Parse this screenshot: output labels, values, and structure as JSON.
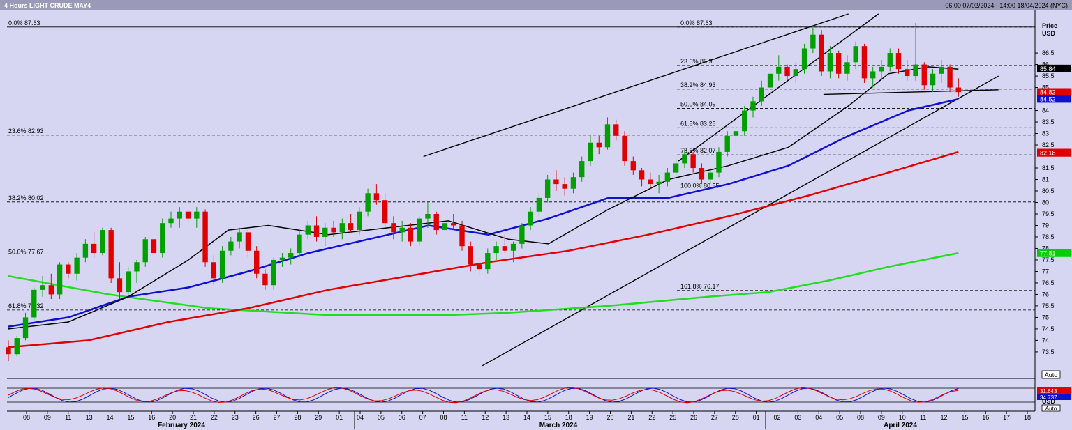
{
  "header": {
    "title": "4 Hours LIGHT CRUDE MAY4",
    "range": "06:00 07/02/2024 - 14:00 18/04/2024 (NYC)"
  },
  "axis": {
    "price_label": "Price",
    "currency": "USD",
    "auto_label": "Auto",
    "price_ticks": [
      "86.5",
      "86",
      "85.5",
      "85",
      "84",
      "83.5",
      "83",
      "82.5",
      "81.5",
      "81",
      "80.5",
      "80",
      "79.5",
      "79",
      "78.5",
      "78",
      "77.5",
      "77",
      "76.5",
      "76",
      "75.5",
      "75",
      "74.5",
      "74",
      "73.5"
    ],
    "date_ticks": [
      "08",
      "09",
      "11",
      "13",
      "14",
      "15",
      "16",
      "20",
      "21",
      "22",
      "23",
      "26",
      "27",
      "28",
      "29",
      "01",
      "04",
      "05",
      "06",
      "07",
      "08",
      "11",
      "12",
      "13",
      "14",
      "15",
      "18",
      "19",
      "20",
      "21",
      "22",
      "25",
      "26",
      "27",
      "28",
      "01",
      "02",
      "03",
      "04",
      "05",
      "08",
      "09",
      "10",
      "11",
      "12",
      "15",
      "16",
      "17",
      "18"
    ],
    "month_labels": [
      "February 2024",
      "March 2024",
      "April 2024"
    ],
    "price_badges": [
      {
        "label": "85.84",
        "color": "#000000"
      },
      {
        "label": "84.82",
        "color": "#e00000"
      },
      {
        "label": "84.52",
        "color": "#1010d0"
      },
      {
        "label": "82.18",
        "color": "#e00000"
      },
      {
        "label": "82.18",
        "color": "#e00000"
      },
      {
        "label": "82.18",
        "color": "#e00000"
      },
      {
        "label": "77.81",
        "color": "#00d000"
      }
    ]
  },
  "fib_left": [
    {
      "label": "0.0% 87.63",
      "price": 87.63
    },
    {
      "label": "23.6% 82.93",
      "price": 82.93
    },
    {
      "label": "38.2% 80.02",
      "price": 80.02
    },
    {
      "label": "50.0% 77.67",
      "price": 77.67
    },
    {
      "label": "61.8% 75.32",
      "price": 75.32
    }
  ],
  "fib_right": [
    {
      "label": "0.0% 87.63",
      "price": 87.63
    },
    {
      "label": "23.6% 85.96",
      "price": 85.96
    },
    {
      "label": "38.2% 84.93",
      "price": 84.93
    },
    {
      "label": "50.0% 84.09",
      "price": 84.09
    },
    {
      "label": "61.8% 83.25",
      "price": 83.25
    },
    {
      "label": "78.6% 82.07",
      "price": 82.07
    },
    {
      "label": "100.0% 80.55",
      "price": 80.55
    },
    {
      "label": "161.8% 76.17",
      "price": 76.17
    }
  ],
  "oscillator": {
    "badges": [
      {
        "label": "31.643",
        "color": "#e00000"
      },
      {
        "label": "34.737",
        "color": "#1010d0"
      }
    ],
    "unit": "USD",
    "auto_label": "Auto"
  },
  "chart_data": {
    "type": "candlestick",
    "ylim": [
      72.8,
      88.2
    ],
    "colors": {
      "up": "#00a000",
      "down": "#e00000",
      "ma_black": "#000000",
      "ma_blue": "#1010d0",
      "ma_red": "#e00000",
      "ma_green": "#22dd22"
    },
    "candles": [
      [
        73.7,
        74.0,
        73.1,
        73.4
      ],
      [
        73.4,
        74.2,
        73.3,
        74.1
      ],
      [
        74.1,
        75.2,
        74.0,
        75.0
      ],
      [
        75.0,
        76.3,
        74.9,
        76.2
      ],
      [
        76.2,
        76.8,
        75.9,
        76.4
      ],
      [
        76.4,
        76.9,
        75.8,
        76.0
      ],
      [
        76.0,
        77.4,
        75.8,
        77.3
      ],
      [
        77.3,
        77.4,
        76.7,
        76.9
      ],
      [
        76.9,
        77.8,
        76.6,
        77.6
      ],
      [
        77.6,
        78.4,
        77.4,
        78.2
      ],
      [
        78.2,
        78.7,
        77.6,
        77.8
      ],
      [
        77.8,
        78.9,
        77.7,
        78.8
      ],
      [
        78.8,
        78.9,
        76.5,
        76.7
      ],
      [
        76.7,
        77.4,
        75.8,
        76.1
      ],
      [
        76.1,
        77.2,
        75.9,
        77.0
      ],
      [
        77.0,
        77.5,
        76.5,
        77.4
      ],
      [
        77.4,
        78.5,
        77.2,
        78.4
      ],
      [
        78.4,
        78.8,
        77.6,
        77.8
      ],
      [
        77.8,
        79.3,
        77.6,
        79.1
      ],
      [
        79.1,
        79.6,
        78.9,
        79.3
      ],
      [
        79.3,
        79.8,
        78.9,
        79.6
      ],
      [
        79.6,
        79.7,
        79.1,
        79.3
      ],
      [
        79.3,
        79.8,
        78.9,
        79.6
      ],
      [
        79.6,
        79.7,
        77.2,
        77.4
      ],
      [
        77.4,
        77.7,
        76.4,
        76.7
      ],
      [
        76.7,
        78.1,
        76.5,
        77.9
      ],
      [
        77.9,
        78.5,
        77.7,
        78.3
      ],
      [
        78.3,
        78.9,
        78.0,
        78.7
      ],
      [
        78.7,
        78.8,
        77.6,
        77.9
      ],
      [
        77.9,
        78.1,
        76.7,
        76.9
      ],
      [
        76.9,
        77.1,
        76.2,
        76.4
      ],
      [
        76.4,
        77.6,
        76.2,
        77.5
      ],
      [
        77.5,
        77.8,
        77.2,
        77.6
      ],
      [
        77.6,
        78.0,
        77.3,
        77.8
      ],
      [
        77.8,
        78.8,
        77.6,
        78.6
      ],
      [
        78.6,
        79.2,
        78.4,
        79.0
      ],
      [
        79.0,
        79.4,
        78.3,
        78.5
      ],
      [
        78.5,
        79.1,
        78.1,
        78.9
      ],
      [
        78.9,
        79.2,
        78.5,
        78.7
      ],
      [
        78.7,
        79.3,
        78.4,
        79.1
      ],
      [
        79.1,
        79.5,
        78.7,
        78.8
      ],
      [
        78.8,
        79.8,
        78.6,
        79.6
      ],
      [
        79.6,
        80.6,
        79.4,
        80.4
      ],
      [
        80.4,
        80.8,
        79.9,
        80.1
      ],
      [
        80.1,
        80.4,
        78.9,
        79.1
      ],
      [
        79.1,
        79.4,
        78.4,
        78.7
      ],
      [
        78.7,
        79.2,
        78.3,
        78.9
      ],
      [
        78.9,
        79.1,
        78.1,
        78.3
      ],
      [
        78.3,
        79.4,
        78.1,
        79.3
      ],
      [
        79.3,
        80.0,
        78.9,
        79.5
      ],
      [
        79.5,
        79.6,
        78.6,
        78.8
      ],
      [
        78.8,
        79.3,
        78.5,
        79.1
      ],
      [
        79.1,
        79.5,
        78.8,
        79.0
      ],
      [
        79.0,
        79.2,
        77.9,
        78.1
      ],
      [
        78.1,
        78.3,
        77.0,
        77.3
      ],
      [
        77.3,
        77.6,
        76.8,
        77.1
      ],
      [
        77.1,
        78.0,
        76.9,
        77.8
      ],
      [
        77.8,
        78.3,
        77.5,
        78.1
      ],
      [
        78.1,
        78.6,
        77.8,
        77.9
      ],
      [
        77.9,
        78.3,
        77.4,
        78.2
      ],
      [
        78.2,
        79.1,
        78.0,
        79.0
      ],
      [
        79.0,
        79.8,
        78.8,
        79.6
      ],
      [
        79.6,
        80.4,
        79.4,
        80.2
      ],
      [
        80.2,
        81.2,
        80.0,
        81.0
      ],
      [
        81.0,
        81.4,
        80.5,
        80.8
      ],
      [
        80.8,
        81.1,
        80.3,
        80.6
      ],
      [
        80.6,
        81.3,
        80.4,
        81.1
      ],
      [
        81.1,
        82.0,
        80.9,
        81.8
      ],
      [
        81.8,
        82.9,
        81.6,
        82.6
      ],
      [
        82.6,
        82.9,
        82.1,
        82.4
      ],
      [
        82.4,
        83.7,
        82.3,
        83.4
      ],
      [
        83.4,
        83.6,
        82.7,
        82.9
      ],
      [
        82.9,
        83.1,
        81.6,
        81.8
      ],
      [
        81.8,
        82.0,
        81.2,
        81.4
      ],
      [
        81.4,
        81.5,
        80.7,
        81.0
      ],
      [
        81.0,
        81.3,
        80.6,
        80.8
      ],
      [
        80.8,
        81.2,
        80.4,
        80.9
      ],
      [
        80.9,
        81.5,
        80.7,
        81.3
      ],
      [
        81.3,
        81.9,
        81.1,
        81.7
      ],
      [
        81.7,
        82.3,
        81.5,
        82.1
      ],
      [
        82.1,
        82.2,
        81.3,
        81.5
      ],
      [
        81.5,
        81.7,
        80.8,
        81.0
      ],
      [
        81.0,
        81.5,
        80.8,
        81.3
      ],
      [
        81.3,
        82.4,
        81.1,
        82.2
      ],
      [
        82.2,
        83.1,
        82.0,
        82.9
      ],
      [
        82.9,
        83.6,
        82.6,
        83.1
      ],
      [
        83.1,
        84.2,
        82.9,
        84.0
      ],
      [
        84.0,
        84.6,
        83.7,
        84.4
      ],
      [
        84.4,
        85.3,
        84.2,
        85.0
      ],
      [
        85.0,
        85.9,
        84.7,
        85.6
      ],
      [
        85.6,
        86.4,
        85.3,
        85.9
      ],
      [
        85.9,
        86.0,
        85.3,
        85.5
      ],
      [
        85.5,
        86.1,
        85.2,
        85.8
      ],
      [
        85.8,
        86.9,
        85.6,
        86.7
      ],
      [
        86.7,
        87.6,
        86.5,
        87.3
      ],
      [
        87.3,
        87.5,
        85.5,
        85.7
      ],
      [
        85.7,
        86.8,
        85.4,
        86.5
      ],
      [
        86.5,
        86.6,
        85.4,
        85.6
      ],
      [
        85.6,
        86.4,
        85.3,
        86.1
      ],
      [
        86.1,
        87.0,
        85.8,
        86.8
      ],
      [
        86.8,
        86.9,
        85.2,
        85.4
      ],
      [
        85.4,
        85.9,
        85.0,
        85.7
      ],
      [
        85.7,
        86.2,
        85.4,
        85.9
      ],
      [
        85.9,
        86.7,
        85.7,
        86.5
      ],
      [
        86.5,
        86.7,
        85.6,
        85.8
      ],
      [
        85.8,
        86.2,
        85.3,
        85.5
      ],
      [
        85.5,
        87.8,
        85.3,
        86.0
      ],
      [
        86.0,
        86.1,
        84.9,
        85.1
      ],
      [
        85.1,
        85.8,
        84.8,
        85.6
      ],
      [
        85.6,
        86.2,
        85.2,
        85.9
      ],
      [
        85.9,
        86.0,
        84.8,
        85.0
      ],
      [
        85.0,
        85.4,
        84.6,
        84.8
      ]
    ],
    "ma_black": [
      [
        0,
        74.5
      ],
      [
        0.06,
        74.8
      ],
      [
        0.12,
        75.9
      ],
      [
        0.18,
        77.5
      ],
      [
        0.22,
        78.8
      ],
      [
        0.26,
        79.0
      ],
      [
        0.32,
        78.6
      ],
      [
        0.38,
        78.9
      ],
      [
        0.44,
        79.2
      ],
      [
        0.5,
        78.4
      ],
      [
        0.54,
        78.2
      ],
      [
        0.6,
        79.7
      ],
      [
        0.66,
        81.0
      ],
      [
        0.72,
        81.6
      ],
      [
        0.78,
        82.4
      ],
      [
        0.84,
        84.2
      ],
      [
        0.88,
        85.6
      ],
      [
        0.92,
        85.9
      ],
      [
        0.95,
        85.8
      ]
    ],
    "ma_blue": [
      [
        0,
        74.6
      ],
      [
        0.06,
        75.0
      ],
      [
        0.12,
        75.9
      ],
      [
        0.18,
        76.3
      ],
      [
        0.24,
        77.0
      ],
      [
        0.3,
        77.8
      ],
      [
        0.36,
        78.4
      ],
      [
        0.42,
        79.0
      ],
      [
        0.48,
        78.6
      ],
      [
        0.54,
        79.3
      ],
      [
        0.6,
        80.2
      ],
      [
        0.66,
        80.2
      ],
      [
        0.72,
        80.8
      ],
      [
        0.78,
        81.6
      ],
      [
        0.84,
        82.9
      ],
      [
        0.9,
        84.0
      ],
      [
        0.95,
        84.5
      ]
    ],
    "ma_red": [
      [
        0,
        73.7
      ],
      [
        0.08,
        74.0
      ],
      [
        0.16,
        74.8
      ],
      [
        0.24,
        75.4
      ],
      [
        0.32,
        76.2
      ],
      [
        0.4,
        76.8
      ],
      [
        0.48,
        77.4
      ],
      [
        0.56,
        77.9
      ],
      [
        0.64,
        78.6
      ],
      [
        0.72,
        79.4
      ],
      [
        0.8,
        80.3
      ],
      [
        0.88,
        81.3
      ],
      [
        0.95,
        82.2
      ]
    ],
    "ma_green": [
      [
        0,
        76.8
      ],
      [
        0.1,
        76.0
      ],
      [
        0.2,
        75.4
      ],
      [
        0.32,
        75.1
      ],
      [
        0.44,
        75.1
      ],
      [
        0.5,
        75.2
      ],
      [
        0.6,
        75.5
      ],
      [
        0.7,
        75.9
      ],
      [
        0.76,
        76.1
      ],
      [
        0.82,
        76.6
      ],
      [
        0.88,
        77.2
      ],
      [
        0.95,
        77.8
      ]
    ]
  }
}
